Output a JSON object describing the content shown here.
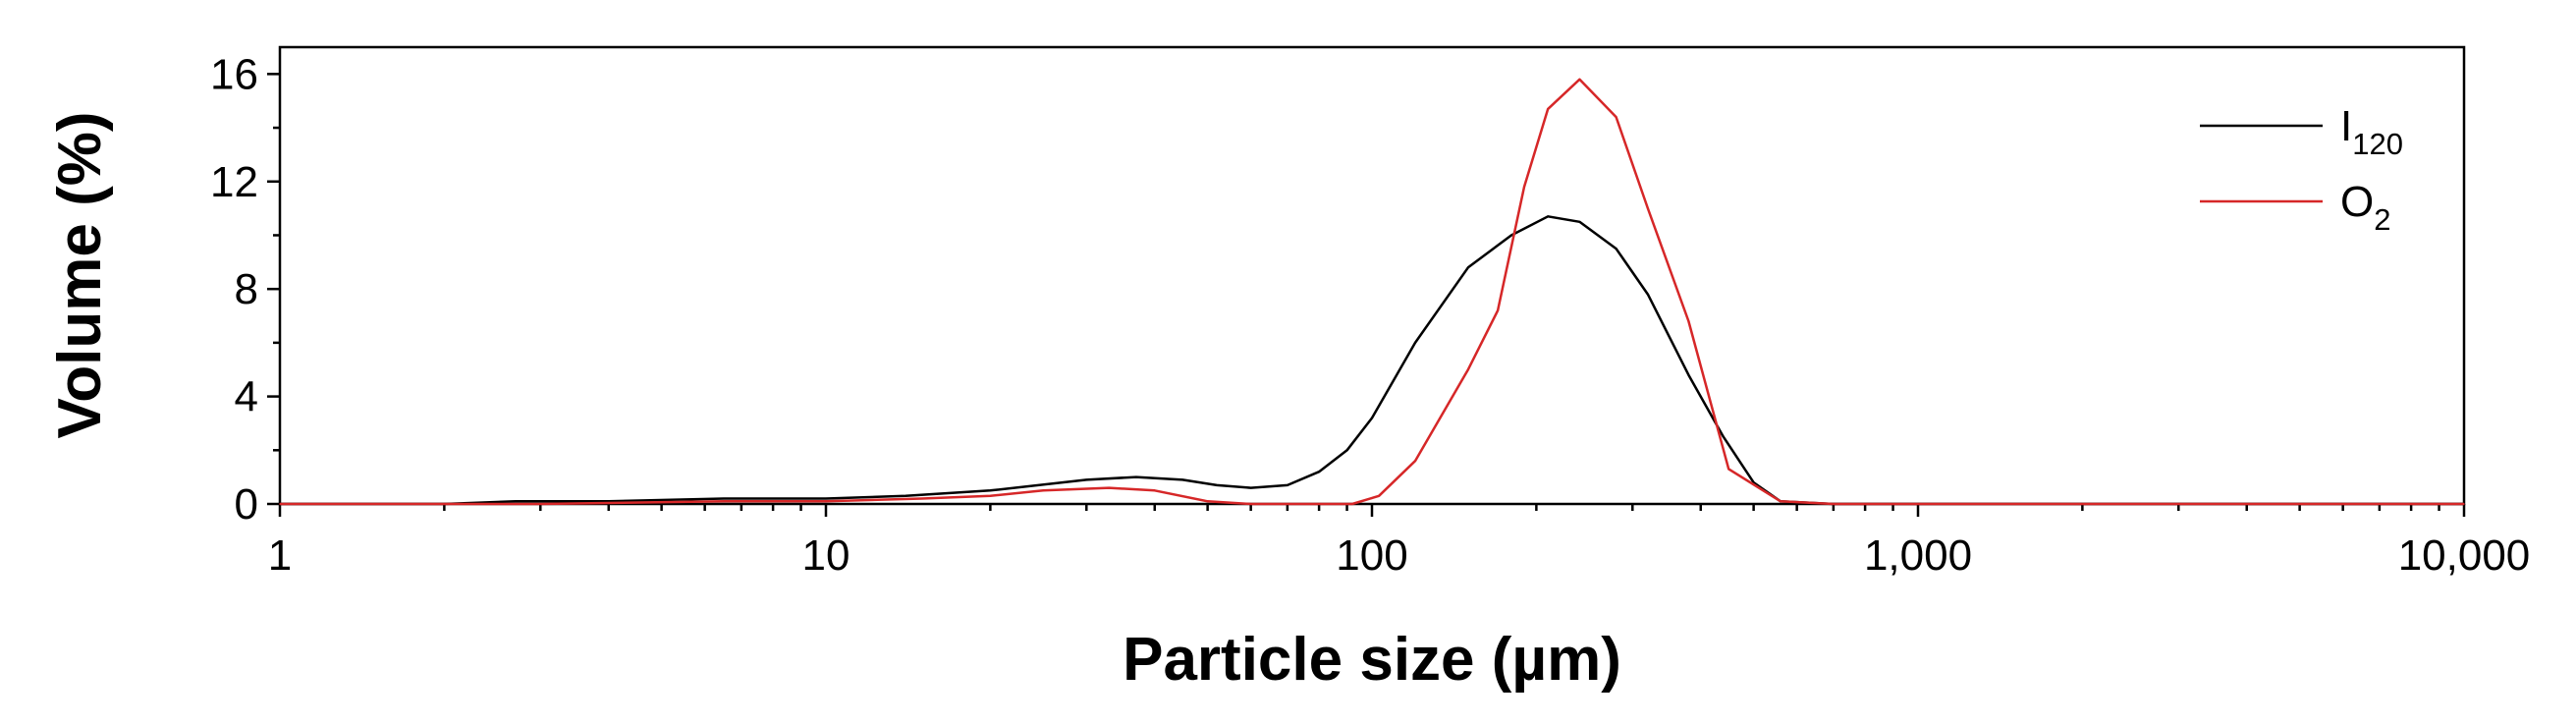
{
  "chart_data": {
    "type": "line",
    "xlabel": "Particle size (µm)",
    "ylabel": "Volume (%)",
    "xscale": "log",
    "xlim": [
      1,
      10000
    ],
    "ylim": [
      0,
      17
    ],
    "x_ticks": [
      1,
      10,
      100,
      1000,
      10000
    ],
    "x_tick_labels": [
      "1",
      "10",
      "100",
      "1,000",
      "10,000"
    ],
    "y_ticks": [
      0,
      4,
      8,
      12,
      16
    ],
    "y_tick_labels": [
      "0",
      "4",
      "8",
      "12",
      "16"
    ],
    "grid": false,
    "legend_position": "top-right",
    "series": [
      {
        "name": "I120",
        "name_main": "I",
        "name_sub": "120",
        "color": "#000000",
        "x": [
          1,
          2,
          2.7,
          4,
          6.5,
          10,
          14,
          20,
          30,
          37,
          45,
          52,
          60,
          70,
          80,
          90,
          100,
          120,
          150,
          180,
          210,
          240,
          280,
          320,
          380,
          440,
          500,
          560,
          700,
          1000,
          10000
        ],
        "y": [
          0,
          0,
          0.1,
          0.1,
          0.2,
          0.2,
          0.3,
          0.5,
          0.9,
          1.0,
          0.9,
          0.7,
          0.6,
          0.7,
          1.2,
          2.0,
          3.2,
          6.0,
          8.8,
          10.0,
          10.7,
          10.5,
          9.5,
          7.8,
          4.8,
          2.5,
          0.8,
          0.1,
          0,
          0,
          0
        ]
      },
      {
        "name": "O2",
        "name_main": "O",
        "name_sub": "2",
        "color": "#d62728",
        "x": [
          1,
          3,
          6.5,
          10,
          15,
          20,
          25,
          33,
          40,
          50,
          60,
          92,
          103,
          120,
          150,
          170,
          190,
          210,
          240,
          280,
          320,
          380,
          450,
          560,
          700,
          1000,
          10000
        ],
        "y": [
          0,
          0,
          0.1,
          0.1,
          0.2,
          0.3,
          0.5,
          0.6,
          0.5,
          0.1,
          0,
          0,
          0.3,
          1.6,
          5.0,
          7.2,
          11.8,
          14.7,
          15.8,
          14.4,
          11.0,
          6.8,
          1.3,
          0.1,
          0,
          0,
          0
        ]
      }
    ]
  }
}
